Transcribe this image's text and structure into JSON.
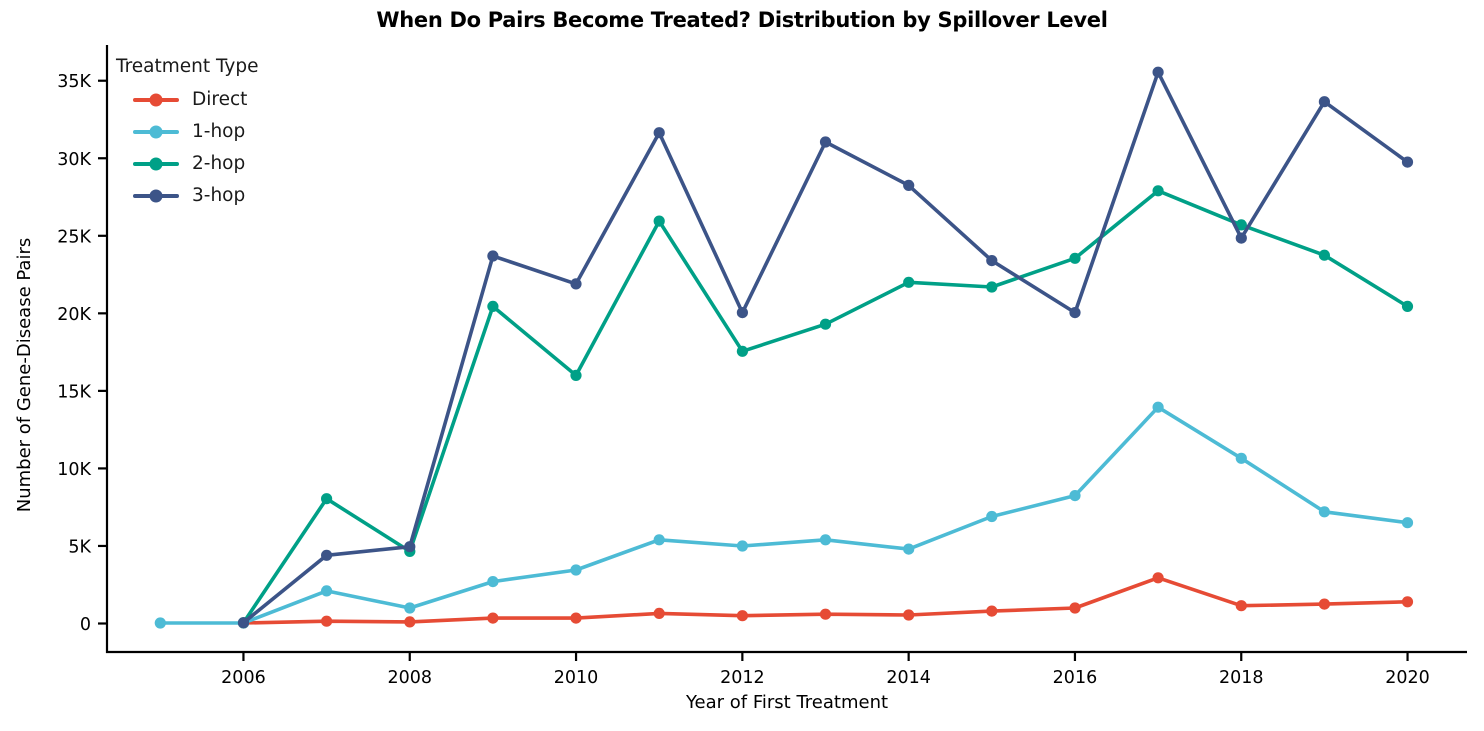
{
  "chart_data": {
    "type": "line",
    "title": "When Do Pairs Become Treated? Distribution by Spillover Level",
    "xlabel": "Year of First Treatment",
    "ylabel": "Number of Gene-Disease Pairs",
    "legend": {
      "title": "Treatment Type",
      "position": "upper-left"
    },
    "axes": {
      "xlim": [
        2004.35,
        2020.7
      ],
      "ylim": [
        0,
        37400
      ],
      "grid": false,
      "xticks": {
        "values": [
          2006,
          2008,
          2010,
          2012,
          2014,
          2016,
          2018,
          2020
        ],
        "labels": [
          "2006",
          "2008",
          "2010",
          "2012",
          "2014",
          "2016",
          "2018",
          "2020"
        ]
      },
      "yticks": {
        "values": [
          0,
          5000,
          10000,
          15000,
          20000,
          25000,
          30000,
          35000
        ],
        "labels": [
          "0",
          "5K",
          "10K",
          "15K",
          "20K",
          "25K",
          "30K",
          "35K"
        ]
      }
    },
    "series": [
      {
        "name": "Direct",
        "color": "#E64B35",
        "x": [
          2006,
          2007,
          2008,
          2009,
          2010,
          2011,
          2012,
          2013,
          2014,
          2015,
          2016,
          2017,
          2018,
          2019,
          2020
        ],
        "values": [
          30,
          150,
          100,
          350,
          350,
          650,
          500,
          600,
          550,
          800,
          1000,
          2950,
          1150,
          1250,
          1400
        ]
      },
      {
        "name": "1-hop",
        "color": "#4DBBD5",
        "x": [
          2005,
          2006,
          2007,
          2008,
          2009,
          2010,
          2011,
          2012,
          2013,
          2014,
          2015,
          2016,
          2017,
          2018,
          2019,
          2020
        ],
        "values": [
          30,
          30,
          2100,
          1000,
          2700,
          3450,
          5400,
          5000,
          5400,
          4800,
          6900,
          8250,
          13950,
          10650,
          7200,
          6500
        ]
      },
      {
        "name": "2-hop",
        "color": "#00A087",
        "x": [
          2006,
          2007,
          2008,
          2009,
          2010,
          2011,
          2012,
          2013,
          2014,
          2015,
          2016,
          2017,
          2018,
          2019,
          2020
        ],
        "values": [
          50,
          8050,
          4650,
          20450,
          16000,
          25950,
          17550,
          19300,
          22000,
          21700,
          23550,
          27900,
          25700,
          23750,
          20450
        ]
      },
      {
        "name": "3-hop",
        "color": "#3C5488",
        "x": [
          2006,
          2007,
          2008,
          2009,
          2010,
          2011,
          2012,
          2013,
          2014,
          2015,
          2016,
          2017,
          2018,
          2019,
          2020
        ],
        "values": [
          50,
          4400,
          4950,
          23700,
          21900,
          31650,
          20050,
          31050,
          28250,
          23400,
          20050,
          35550,
          24850,
          33650,
          29750
        ]
      }
    ]
  }
}
